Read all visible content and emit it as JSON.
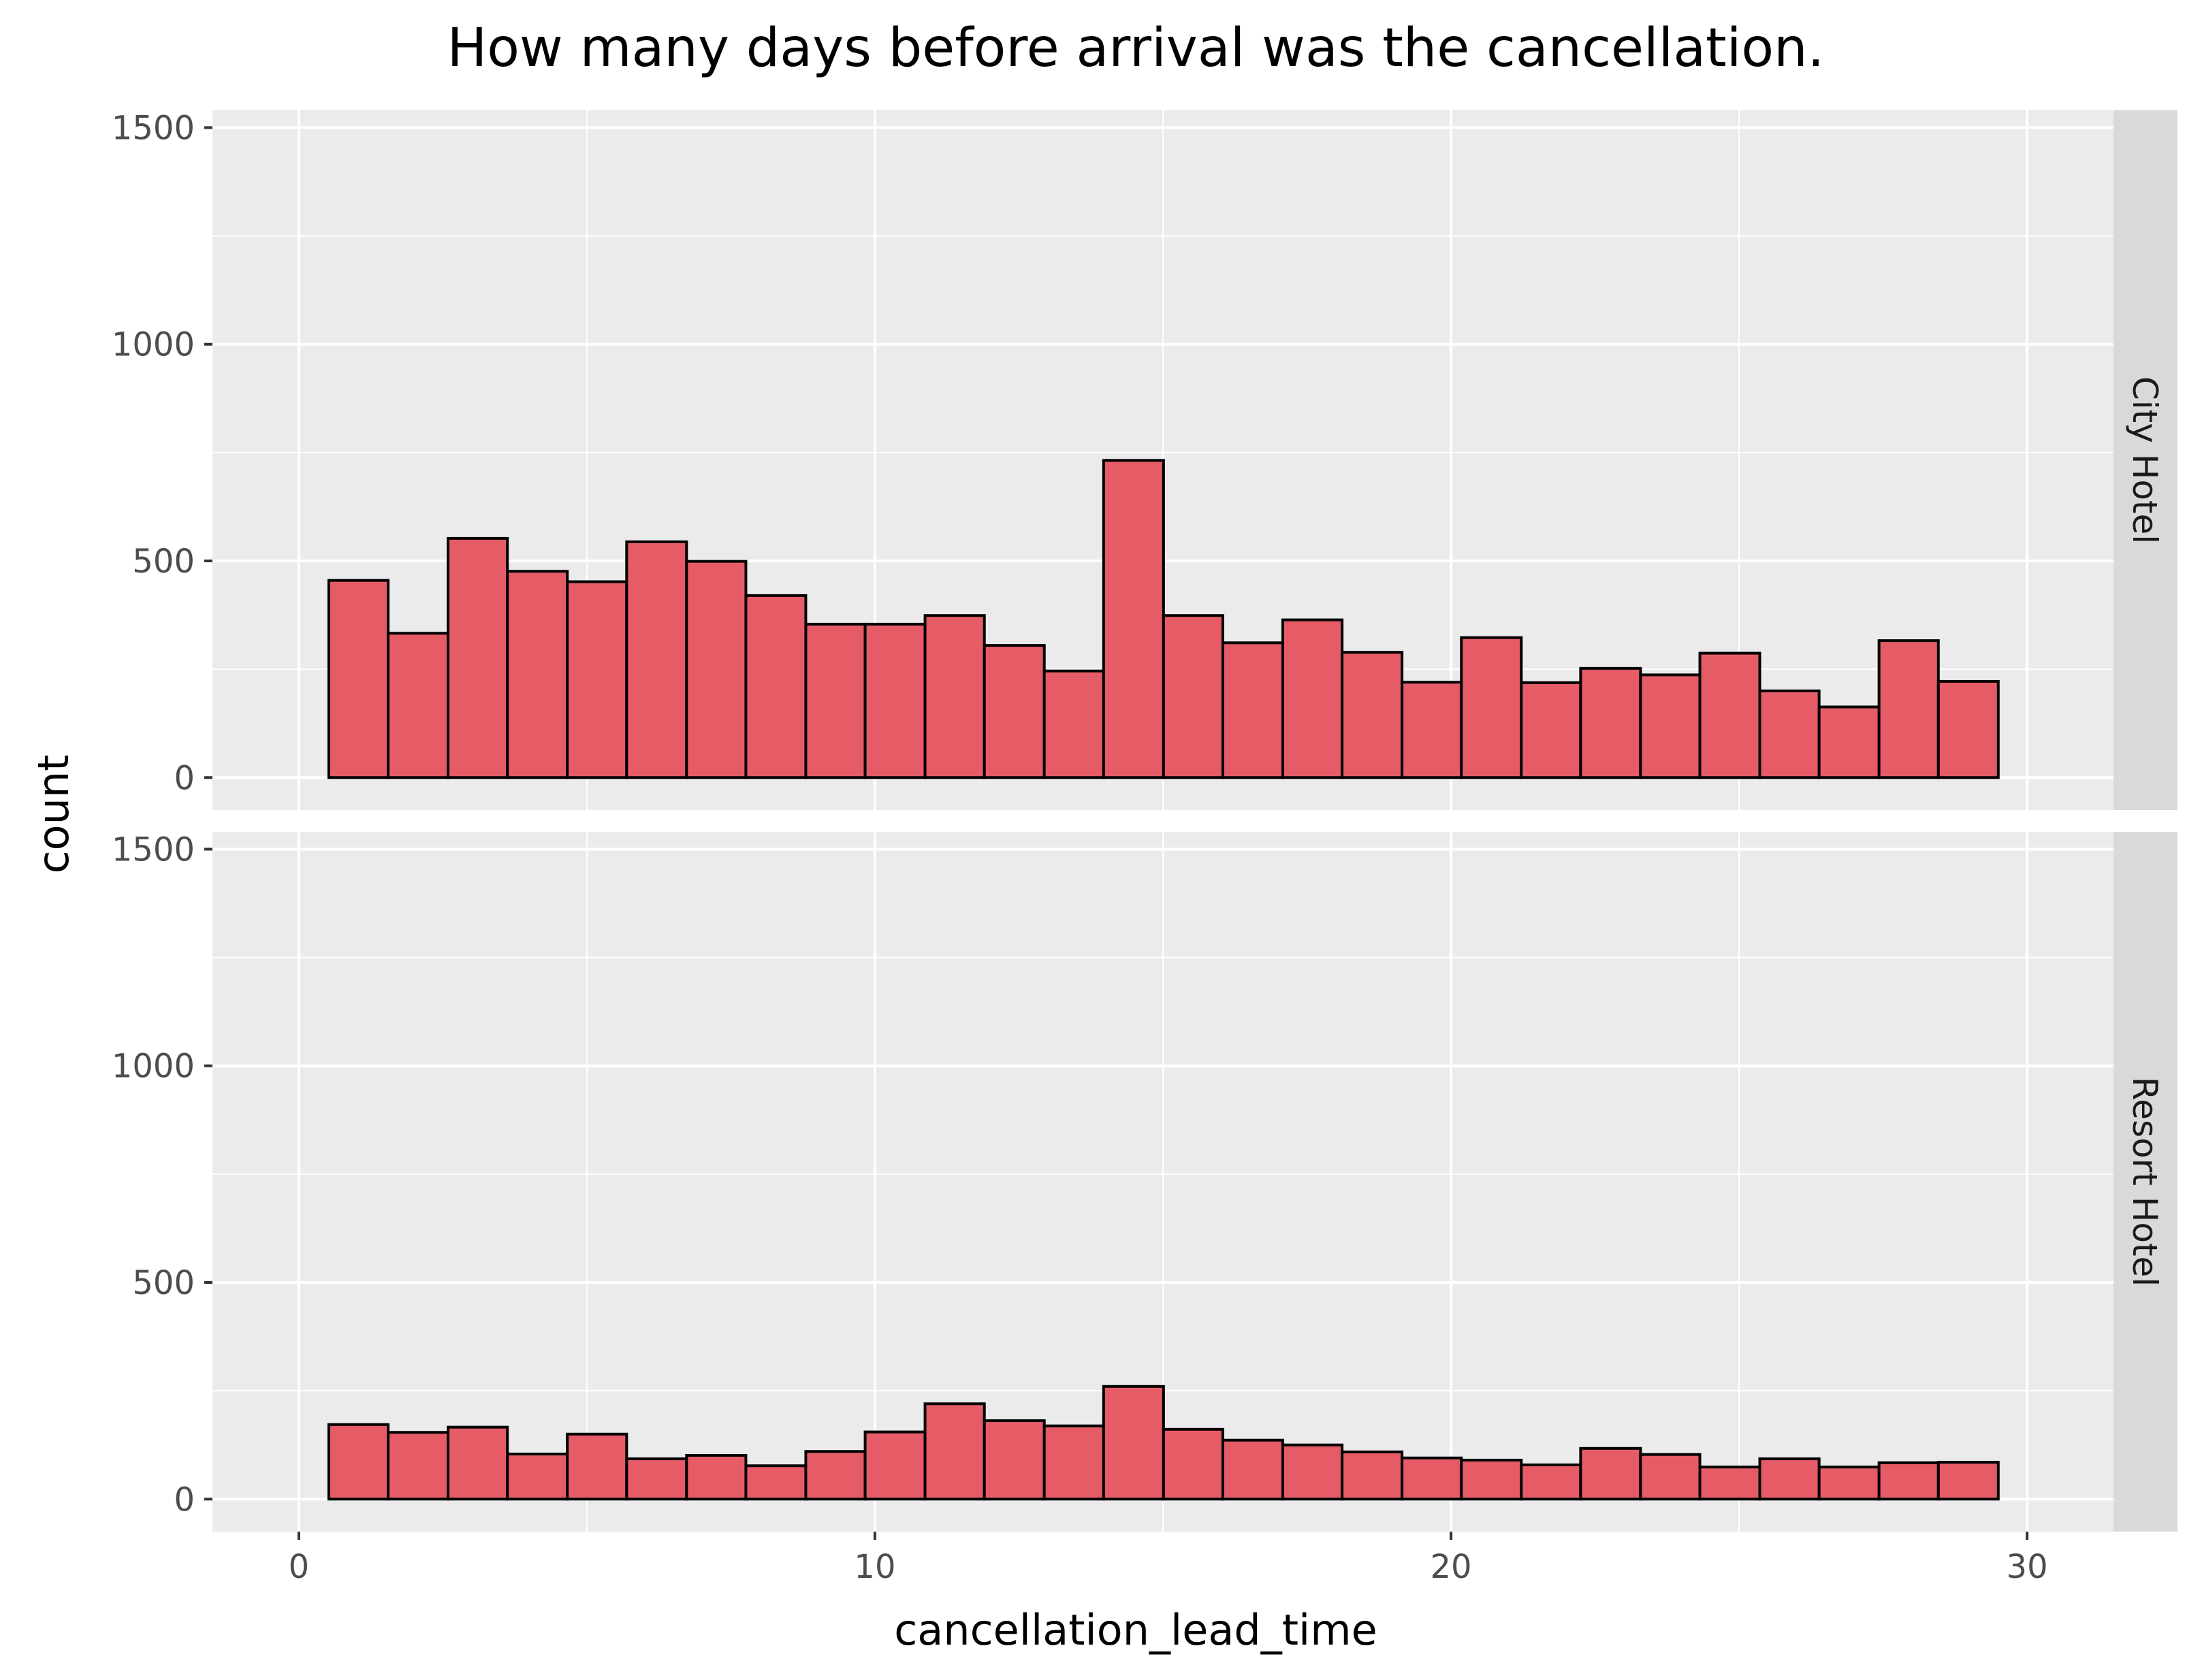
{
  "chart_data": {
    "type": "bar",
    "title": "How many days before arrival was the cancellation.",
    "xlabel": "cancellation_lead_time",
    "ylabel": "count",
    "xlim": [
      -1.5,
      31.5
    ],
    "ylim": [
      -75,
      1540
    ],
    "x_ticks": [
      0,
      10,
      20,
      30
    ],
    "y_ticks": [
      0,
      500,
      1000,
      1500
    ],
    "bin_edges": [
      0.52,
      1.55,
      2.59,
      3.62,
      4.66,
      5.69,
      6.73,
      7.76,
      8.8,
      9.83,
      10.87,
      11.9,
      12.94,
      13.97,
      15.01,
      16.04,
      17.08,
      18.11,
      19.15,
      20.18,
      21.22,
      22.25,
      23.29,
      24.32,
      25.36,
      26.39,
      27.43,
      28.46,
      29.5
    ],
    "bar_fill": "#e65c66",
    "bar_stroke": "#000000",
    "panel_bg": "#ebebeb",
    "strip_bg": "#d9d9d9",
    "grid_color": "#ffffff",
    "facets": [
      {
        "label": "City Hotel",
        "values": [
          455,
          333,
          552,
          476,
          452,
          544,
          499,
          420,
          354,
          354,
          374,
          305,
          246,
          732,
          374,
          311,
          364,
          289,
          220,
          323,
          219,
          252,
          237,
          287,
          200,
          163,
          316,
          222
        ]
      },
      {
        "label": "Resort Hotel",
        "values": [
          172,
          154,
          166,
          104,
          150,
          93,
          101,
          77,
          110,
          155,
          220,
          181,
          169,
          260,
          161,
          136,
          125,
          109,
          95,
          90,
          79,
          117,
          103,
          74,
          93,
          74,
          84,
          85
        ]
      }
    ]
  }
}
